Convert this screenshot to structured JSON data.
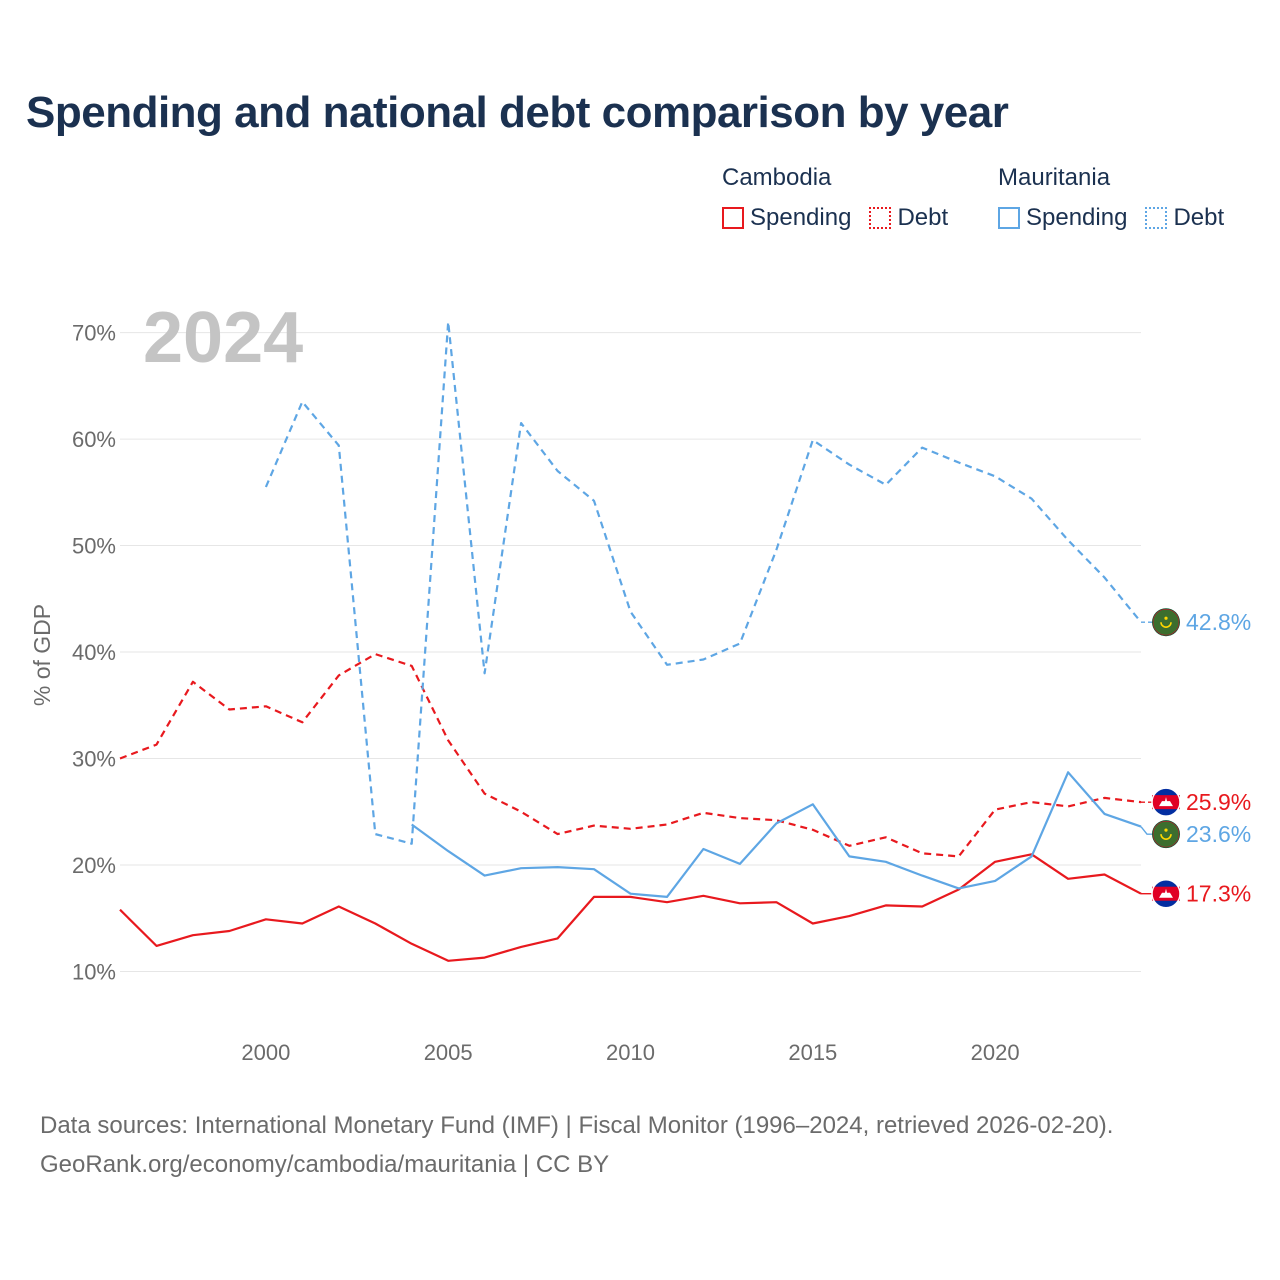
{
  "title": "Spending and national debt comparison by year",
  "legend": [
    {
      "country": "Cambodia",
      "color": "#e8191e",
      "items": [
        {
          "label": "Spending",
          "style": "solid"
        },
        {
          "label": "Debt",
          "style": "dotted"
        }
      ]
    },
    {
      "country": "Mauritania",
      "color": "#5ea6e4",
      "items": [
        {
          "label": "Spending",
          "style": "solid"
        },
        {
          "label": "Debt",
          "style": "dotted"
        }
      ]
    }
  ],
  "footer": {
    "source": "Data sources: International Monetary Fund (IMF) | Fiscal Monitor (1996–2024, retrieved 2026-02-20).",
    "credit": "GeoRank.org/economy/cambodia/mauritania | CC BY"
  },
  "chart_data": {
    "type": "line",
    "title": "Spending and national debt comparison by year",
    "year_label": "2024",
    "xlabel": "",
    "ylabel": "% of GDP",
    "xlim": [
      1996,
      2024
    ],
    "ylim": [
      4.5,
      74
    ],
    "yticks": [
      10,
      20,
      30,
      40,
      50,
      60,
      70
    ],
    "ytick_labels": [
      "10%",
      "20%",
      "30%",
      "40%",
      "50%",
      "60%",
      "70%"
    ],
    "xticks": [
      2000,
      2005,
      2010,
      2015,
      2020
    ],
    "xtick_labels": [
      "2000",
      "2005",
      "2010",
      "2015",
      "2020"
    ],
    "grid": true,
    "series": [
      {
        "name": "Cambodia Spending",
        "country": "Cambodia",
        "color": "#e8191e",
        "dash": "solid",
        "x": [
          1996,
          1997,
          1998,
          1999,
          2000,
          2001,
          2002,
          2003,
          2004,
          2005,
          2006,
          2007,
          2008,
          2009,
          2010,
          2011,
          2012,
          2013,
          2014,
          2015,
          2016,
          2017,
          2018,
          2019,
          2020,
          2021,
          2022,
          2023,
          2024
        ],
        "values": [
          15.8,
          12.4,
          13.4,
          13.8,
          14.9,
          14.5,
          16.1,
          14.5,
          12.6,
          11.0,
          11.3,
          12.3,
          13.1,
          17.0,
          17.0,
          16.5,
          17.1,
          16.4,
          16.5,
          14.5,
          15.2,
          16.2,
          16.1,
          17.7,
          20.3,
          21.0,
          18.7,
          19.1,
          17.3
        ],
        "end_label": "17.3%"
      },
      {
        "name": "Cambodia Debt",
        "country": "Cambodia",
        "color": "#e8191e",
        "dash": "dashed",
        "x": [
          1996,
          1997,
          1998,
          1999,
          2000,
          2001,
          2002,
          2003,
          2004,
          2005,
          2006,
          2007,
          2008,
          2009,
          2010,
          2011,
          2012,
          2013,
          2014,
          2015,
          2016,
          2017,
          2018,
          2019,
          2020,
          2021,
          2022,
          2023,
          2024
        ],
        "values": [
          30.0,
          31.3,
          37.2,
          34.6,
          34.9,
          33.4,
          37.8,
          39.8,
          38.7,
          31.7,
          26.7,
          25.0,
          22.9,
          23.7,
          23.4,
          23.8,
          24.9,
          24.4,
          24.2,
          23.3,
          21.8,
          22.6,
          21.1,
          20.8,
          25.2,
          25.9,
          25.5,
          26.3,
          25.9
        ],
        "end_label": "25.9%"
      },
      {
        "name": "Mauritania Spending",
        "country": "Mauritania",
        "color": "#5ea6e4",
        "dash": "solid",
        "x": [
          2004,
          2005,
          2006,
          2007,
          2008,
          2009,
          2010,
          2011,
          2012,
          2013,
          2014,
          2015,
          2016,
          2017,
          2018,
          2019,
          2020,
          2021,
          2022,
          2023,
          2024
        ],
        "values": [
          23.8,
          21.3,
          19.0,
          19.7,
          19.8,
          19.6,
          17.3,
          17.0,
          21.5,
          20.1,
          23.9,
          25.7,
          20.8,
          20.3,
          19.0,
          17.8,
          18.5,
          20.8,
          28.7,
          24.8,
          23.6
        ],
        "end_label": "23.6%"
      },
      {
        "name": "Mauritania Debt",
        "country": "Mauritania",
        "color": "#5ea6e4",
        "dash": "dashed",
        "x": [
          2000,
          2001,
          2002,
          2003,
          2004,
          2005,
          2006,
          2007,
          2008,
          2009,
          2010,
          2011,
          2012,
          2013,
          2014,
          2015,
          2016,
          2017,
          2018,
          2019,
          2020,
          2021,
          2022,
          2023,
          2024
        ],
        "values": [
          55.5,
          63.5,
          59.4,
          22.9,
          22.0,
          71.0,
          38.0,
          61.5,
          57.0,
          54.2,
          43.8,
          38.8,
          39.3,
          40.8,
          49.6,
          59.9,
          57.6,
          55.7,
          59.2,
          57.8,
          56.5,
          54.4,
          50.5,
          47.0,
          42.8
        ],
        "end_label": "42.8%"
      }
    ]
  }
}
